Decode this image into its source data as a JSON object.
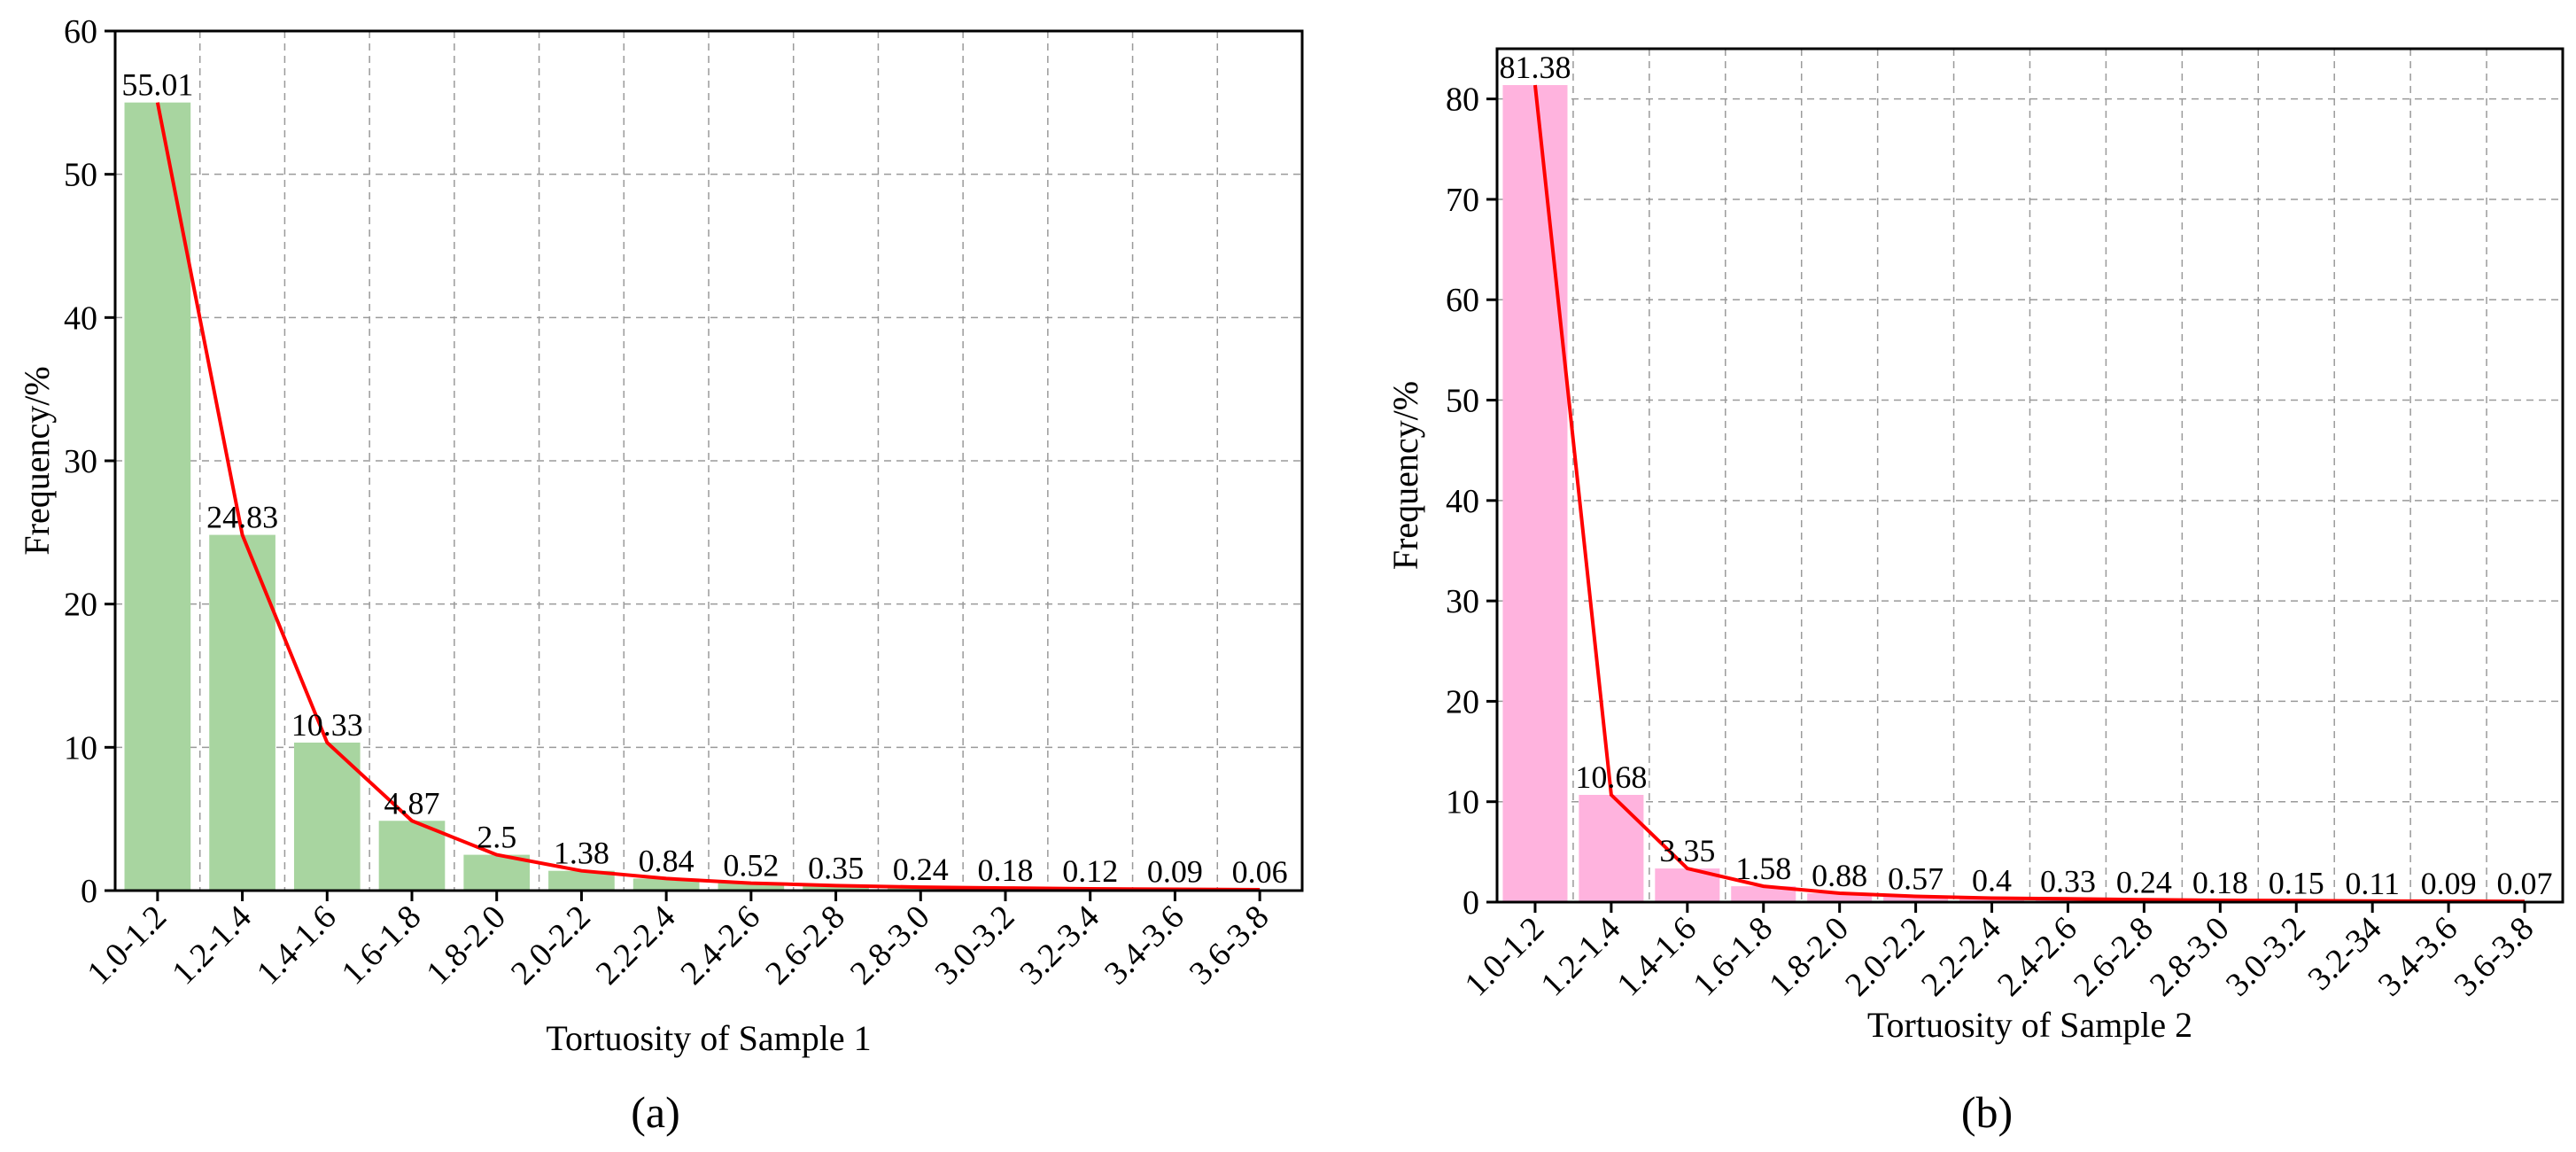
{
  "chart_data": [
    {
      "type": "bar",
      "panel_label": "(a)",
      "xlabel": "Tortuosity of Sample 1",
      "ylabel": "Frequency/%",
      "ylim": [
        0,
        60
      ],
      "yticks": [
        0,
        10,
        20,
        30,
        40,
        50,
        60
      ],
      "grid": true,
      "categories": [
        "1.0-1.2",
        "1.2-1.4",
        "1.4-1.6",
        "1.6-1.8",
        "1.8-2.0",
        "2.0-2.2",
        "2.2-2.4",
        "2.4-2.6",
        "2.6-2.8",
        "2.8-3.0",
        "3.0-3.2",
        "3.2-3.4",
        "3.4-3.6",
        "3.6-3.8"
      ],
      "values": [
        55.01,
        24.83,
        10.33,
        4.87,
        2.5,
        1.38,
        0.84,
        0.52,
        0.35,
        0.24,
        0.18,
        0.12,
        0.09,
        0.06
      ],
      "data_labels": [
        "55.01",
        "24.83",
        "10.33",
        "4.87",
        "2.5",
        "1.38",
        "0.84",
        "0.52",
        "0.35",
        "0.24",
        "0.18",
        "0.12",
        "0.09",
        "0.06"
      ],
      "bar_color": "#a8d5a0",
      "line_color": "#ff0000",
      "overlay": "line through bar tops"
    },
    {
      "type": "bar",
      "panel_label": "(b)",
      "xlabel": "Tortuosity of Sample 2",
      "ylabel": "Frequency/%",
      "ylim": [
        0,
        85
      ],
      "yticks": [
        0,
        10,
        20,
        30,
        40,
        50,
        60,
        70,
        80
      ],
      "grid": true,
      "categories": [
        "1.0-1.2",
        "1.2-1.4",
        "1.4-1.6",
        "1.6-1.8",
        "1.8-2.0",
        "2.0-2.2",
        "2.2-2.4",
        "2.4-2.6",
        "2.6-2.8",
        "2.8-3.0",
        "3.0-3.2",
        "3.2-34",
        "3.4-3.6",
        "3.6-3.8"
      ],
      "values": [
        81.38,
        10.68,
        3.35,
        1.58,
        0.88,
        0.57,
        0.4,
        0.33,
        0.24,
        0.18,
        0.15,
        0.11,
        0.09,
        0.07
      ],
      "data_labels": [
        "81.38",
        "10.68",
        "3.35",
        "1.58",
        "0.88",
        "0.57",
        "0.4",
        "0.33",
        "0.24",
        "0.18",
        "0.15",
        "0.11",
        "0.09",
        "0.07"
      ],
      "bar_color": "#ffb3de",
      "line_color": "#ff0000",
      "overlay": "line through bar tops"
    }
  ]
}
